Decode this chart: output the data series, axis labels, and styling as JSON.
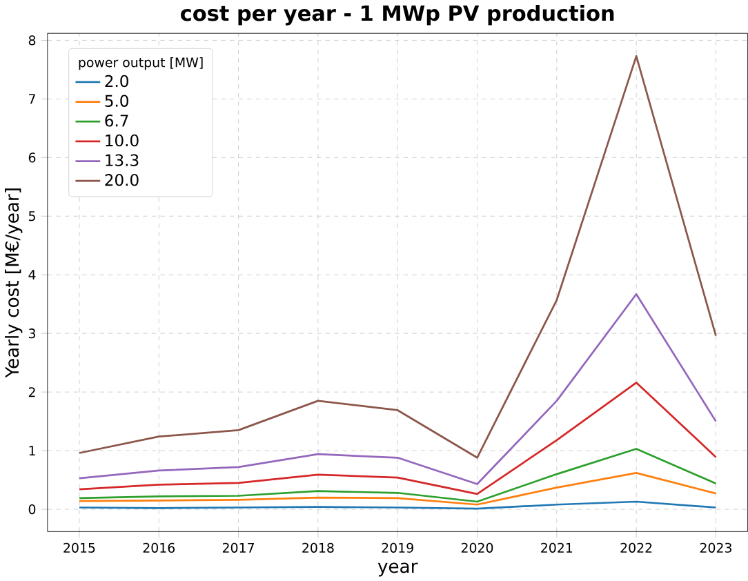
{
  "chart_data": {
    "type": "line",
    "title": "cost per year - 1 MWp PV production",
    "xlabel": "year",
    "ylabel": "Yearly cost [M€/year]",
    "legend_title": "power output [MW]",
    "x": [
      2015,
      2016,
      2017,
      2018,
      2019,
      2020,
      2021,
      2022,
      2023
    ],
    "series": [
      {
        "name": "2.0",
        "color": "#1f77b4",
        "values": [
          0.03,
          0.02,
          0.03,
          0.04,
          0.03,
          0.01,
          0.08,
          0.13,
          0.03
        ]
      },
      {
        "name": "5.0",
        "color": "#ff7f0e",
        "values": [
          0.14,
          0.15,
          0.16,
          0.2,
          0.19,
          0.08,
          0.37,
          0.62,
          0.27
        ]
      },
      {
        "name": "6.7",
        "color": "#2ca02c",
        "values": [
          0.19,
          0.22,
          0.23,
          0.31,
          0.28,
          0.13,
          0.6,
          1.03,
          0.44
        ]
      },
      {
        "name": "10.0",
        "color": "#d62728",
        "values": [
          0.34,
          0.42,
          0.45,
          0.59,
          0.54,
          0.26,
          1.18,
          2.16,
          0.89
        ]
      },
      {
        "name": "13.3",
        "color": "#9467bd",
        "values": [
          0.53,
          0.66,
          0.72,
          0.94,
          0.88,
          0.43,
          1.85,
          3.67,
          1.5
        ]
      },
      {
        "name": "20.0",
        "color": "#8c564b",
        "values": [
          0.96,
          1.24,
          1.35,
          1.85,
          1.69,
          0.88,
          3.57,
          7.73,
          2.96
        ]
      }
    ],
    "xlim": [
      2014.6,
      2023.4
    ],
    "ylim": [
      -0.38,
      8.12
    ],
    "xticks": [
      2015,
      2016,
      2017,
      2018,
      2019,
      2020,
      2021,
      2022,
      2023
    ],
    "yticks": [
      0,
      1,
      2,
      3,
      4,
      5,
      6,
      7,
      8
    ],
    "grid": true,
    "legend": "top left",
    "line_style": "solid",
    "marker": "none"
  }
}
